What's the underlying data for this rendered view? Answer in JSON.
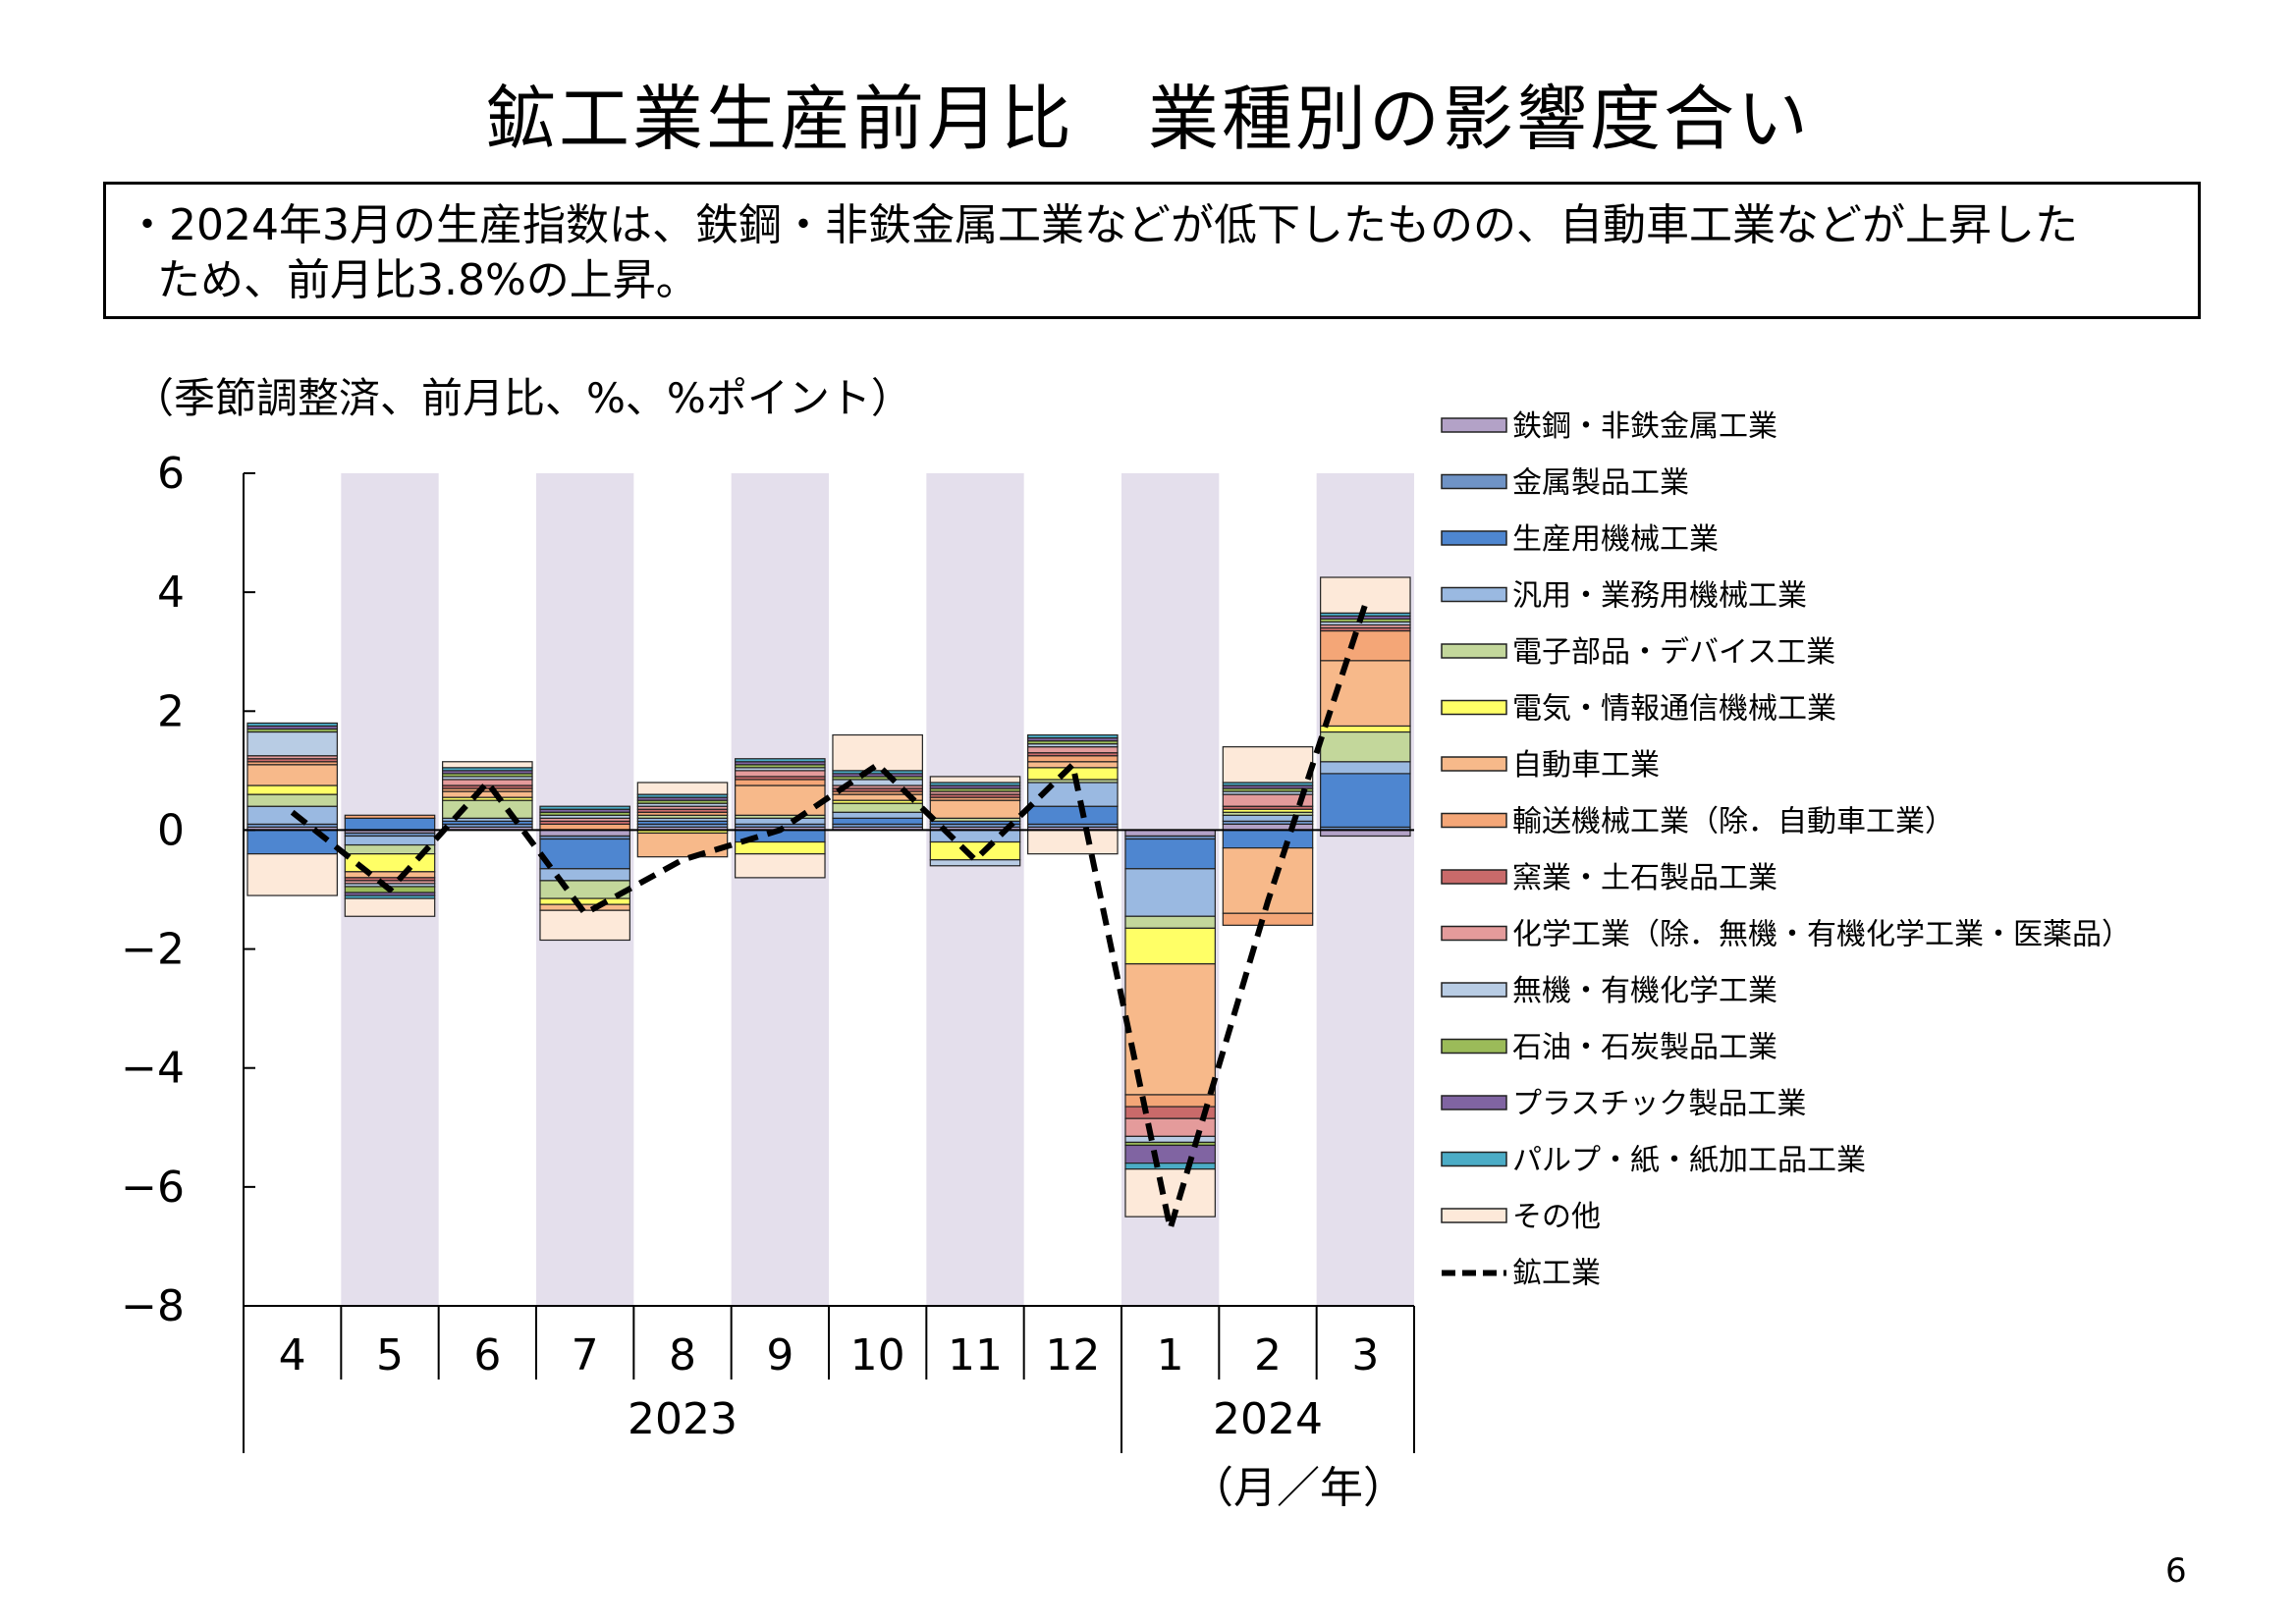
{
  "title": "鉱工業生産前月比　業種別の影響度合い",
  "summary": {
    "line1": "・2024年3月の生産指数は、鉄鋼・非鉄金属工業などが低下したものの、自動車工業などが上昇した",
    "line2": "ため、前月比3.8%の上昇。"
  },
  "unit_label": "（季節調整済、前月比、%、%ポイント）",
  "page_number": "6",
  "chart_data": {
    "type": "bar",
    "stacked": true,
    "ylim": [
      -8,
      6
    ],
    "yticks": [
      "6",
      "4",
      "2",
      "0",
      "−2",
      "−4",
      "−6",
      "−8"
    ],
    "categories": [
      "4",
      "5",
      "6",
      "7",
      "8",
      "9",
      "10",
      "11",
      "12",
      "1",
      "2",
      "3"
    ],
    "year_labels": [
      {
        "label": "2023",
        "from": 0,
        "to": 8
      },
      {
        "label": "2024",
        "from": 9,
        "to": 11
      }
    ],
    "xlabel": "（月／年）",
    "shaded_categories": [
      1,
      3,
      5,
      7,
      9,
      11
    ],
    "shade_color": "#e4dfec",
    "series": [
      {
        "name": "鉄鋼・非鉄金属工業",
        "color": "#b3a2c7",
        "values": [
          0.05,
          -0.05,
          0.05,
          -0.1,
          0.05,
          0.05,
          0.05,
          0.05,
          0.05,
          -0.1,
          0.1,
          -0.1
        ]
      },
      {
        "name": "金属製品工業",
        "color": "#6f93c6",
        "values": [
          0.05,
          -0.05,
          0.05,
          -0.05,
          0.05,
          0.05,
          0.05,
          0.05,
          0.05,
          -0.05,
          0.05,
          0.05
        ]
      },
      {
        "name": "生産用機械工業",
        "color": "#4e86d0",
        "values": [
          -0.4,
          0.2,
          0.05,
          -0.5,
          0.05,
          -0.2,
          0.1,
          0.05,
          0.3,
          -0.5,
          -0.3,
          0.9
        ]
      },
      {
        "name": "汎用・業務用機械工業",
        "color": "#9ab9e1",
        "values": [
          0.3,
          -0.15,
          0.05,
          -0.2,
          0.05,
          0.1,
          0.1,
          -0.2,
          0.4,
          -0.8,
          0.1,
          0.2
        ]
      },
      {
        "name": "電子部品・デバイス工業",
        "color": "#c3d79b",
        "values": [
          0.2,
          -0.15,
          0.3,
          -0.3,
          0.05,
          0.05,
          0.15,
          0.05,
          0.05,
          -0.2,
          0.05,
          0.5
        ]
      },
      {
        "name": "電気・情報通信機械工業",
        "color": "#ffff66",
        "values": [
          0.15,
          -0.3,
          0.05,
          -0.1,
          -0.05,
          -0.2,
          0.05,
          -0.3,
          0.2,
          -0.6,
          0.05,
          0.1
        ]
      },
      {
        "name": "自動車工業",
        "color": "#f7b98a",
        "values": [
          0.35,
          -0.1,
          0.1,
          -0.1,
          -0.4,
          0.5,
          0.1,
          0.3,
          0.1,
          -2.2,
          -1.1,
          1.1
        ]
      },
      {
        "name": "輸送機械工業（除．自動車工業）",
        "color": "#f4a677",
        "values": [
          0.05,
          0.05,
          0.05,
          0.1,
          0.05,
          0.1,
          0.05,
          0.05,
          0.1,
          -0.2,
          -0.2,
          0.5
        ]
      },
      {
        "name": "窯業・土石製品工業",
        "color": "#c96a6a",
        "values": [
          0.05,
          -0.05,
          0.05,
          0.05,
          0.05,
          0.05,
          0.05,
          0.05,
          0.05,
          -0.2,
          0.05,
          0.05
        ]
      },
      {
        "name": "化学工業（除．無機・有機化学工業・医薬品）",
        "color": "#e49b9b",
        "values": [
          0.05,
          -0.05,
          0.1,
          0.05,
          0.05,
          0.1,
          0.05,
          0.05,
          0.1,
          -0.3,
          0.2,
          0.05
        ]
      },
      {
        "name": "無機・有機化学工業",
        "color": "#b8cce4",
        "values": [
          0.4,
          -0.05,
          0.05,
          0.05,
          0.05,
          0.05,
          0.1,
          -0.1,
          0.05,
          -0.1,
          0.05,
          0.05
        ]
      },
      {
        "name": "石油・石炭製品工業",
        "color": "#9bbb59",
        "values": [
          0.05,
          -0.1,
          0.05,
          0.05,
          0.05,
          0.05,
          0.05,
          0.05,
          0.05,
          -0.05,
          0.05,
          0.05
        ]
      },
      {
        "name": "プラスチック製品工業",
        "color": "#8064a2",
        "values": [
          0.05,
          -0.05,
          0.05,
          0.05,
          0.05,
          0.05,
          0.05,
          0.05,
          0.05,
          -0.3,
          0.05,
          0.05
        ]
      },
      {
        "name": "パルプ・紙・紙加工品工業",
        "color": "#4bacc6",
        "values": [
          0.05,
          -0.05,
          0.05,
          0.05,
          0.05,
          0.05,
          0.05,
          0.05,
          0.05,
          -0.1,
          0.05,
          0.05
        ]
      },
      {
        "name": "その他",
        "color": "#fde9d9",
        "values": [
          -0.7,
          -0.3,
          0.1,
          -0.5,
          0.2,
          -0.4,
          0.6,
          0.1,
          -0.4,
          -0.8,
          0.6,
          0.6
        ]
      }
    ],
    "line_series": {
      "name": "鉱工業",
      "color": "#000000",
      "style": "dashed",
      "values": [
        0.3,
        -1.0,
        0.8,
        -1.4,
        -0.5,
        0.0,
        1.1,
        -0.5,
        1.1,
        -6.7,
        -1.2,
        3.8
      ]
    }
  }
}
